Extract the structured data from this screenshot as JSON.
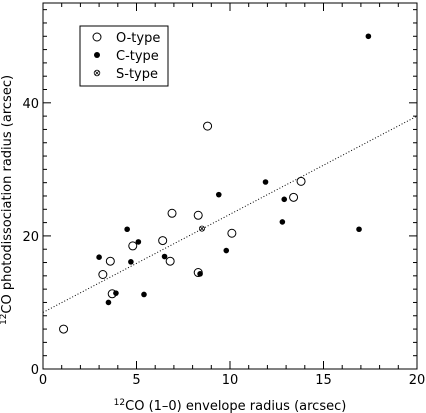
{
  "chart_data": {
    "type": "scatter",
    "xlabel": {
      "sup": "12",
      "text": "CO (1–0) envelope radius (arcsec)"
    },
    "ylabel": {
      "sup": "12",
      "text": "CO photodissociation radius (arcsec)"
    },
    "xlim": [
      0,
      20
    ],
    "ylim": [
      0,
      55
    ],
    "x_ticks": [
      0,
      5,
      10,
      15,
      20
    ],
    "y_ticks": [
      0,
      20,
      40
    ],
    "x_ticks_minor_step": 1,
    "y_ticks_minor_step": 2,
    "legend_position": "top-left",
    "fit_line": {
      "style": "dotted",
      "x": [
        0,
        20
      ],
      "y": [
        8.5,
        38
      ]
    },
    "series": [
      {
        "name": "O-type",
        "marker": "open-circle",
        "points": [
          {
            "x": 1.1,
            "y": 6
          },
          {
            "x": 3.2,
            "y": 14.2
          },
          {
            "x": 3.6,
            "y": 16.2
          },
          {
            "x": 3.7,
            "y": 11.3
          },
          {
            "x": 4.8,
            "y": 18.5
          },
          {
            "x": 6.4,
            "y": 19.3
          },
          {
            "x": 6.8,
            "y": 16.2
          },
          {
            "x": 6.9,
            "y": 23.4
          },
          {
            "x": 8.3,
            "y": 23.1
          },
          {
            "x": 8.3,
            "y": 14.5
          },
          {
            "x": 8.8,
            "y": 36.5
          },
          {
            "x": 10.1,
            "y": 20.4
          },
          {
            "x": 13.4,
            "y": 25.8
          },
          {
            "x": 13.8,
            "y": 28.2
          }
        ]
      },
      {
        "name": "C-type",
        "marker": "filled-circle",
        "points": [
          {
            "x": 3.0,
            "y": 16.8
          },
          {
            "x": 3.5,
            "y": 10.0
          },
          {
            "x": 3.9,
            "y": 11.4
          },
          {
            "x": 4.5,
            "y": 21.0
          },
          {
            "x": 4.7,
            "y": 16.1
          },
          {
            "x": 5.1,
            "y": 19.1
          },
          {
            "x": 5.4,
            "y": 11.2
          },
          {
            "x": 6.5,
            "y": 16.9
          },
          {
            "x": 8.4,
            "y": 14.3
          },
          {
            "x": 9.4,
            "y": 26.2
          },
          {
            "x": 9.8,
            "y": 17.8
          },
          {
            "x": 11.9,
            "y": 28.1
          },
          {
            "x": 12.8,
            "y": 22.1
          },
          {
            "x": 12.9,
            "y": 25.5
          },
          {
            "x": 16.9,
            "y": 21.0
          },
          {
            "x": 17.4,
            "y": 50.0
          }
        ]
      },
      {
        "name": "S-type",
        "marker": "cross-circle",
        "points": [
          {
            "x": 8.5,
            "y": 21.1
          }
        ]
      }
    ]
  }
}
